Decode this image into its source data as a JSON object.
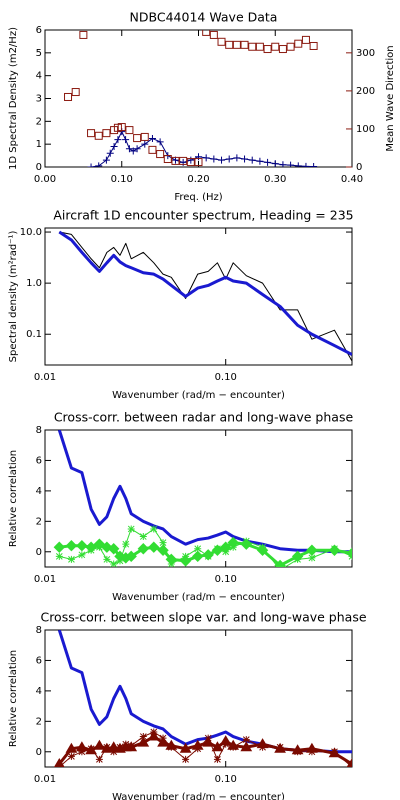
{
  "chart_data": [
    {
      "type": "line",
      "title": "NDBC44014 Wave Data",
      "xlabel": "Freq. (Hz)",
      "ylabel": "1D Spectral Density (m2/Hz)",
      "y2label": "Mean Wave Direction",
      "y2color": "#8b1a10",
      "xlim": [
        0,
        0.4
      ],
      "xticks": [
        {
          "value": 0,
          "label": "0.00"
        },
        {
          "value": 0.1,
          "label": "0.10"
        },
        {
          "value": 0.2,
          "label": "0.20"
        },
        {
          "value": 0.3,
          "label": "0.30"
        },
        {
          "value": 0.4,
          "label": "0.40"
        }
      ],
      "ylim": [
        0,
        6
      ],
      "yticks": [
        0,
        1,
        2,
        3,
        4,
        5,
        6
      ],
      "y2lim": [
        0,
        360
      ],
      "y2ticks": [
        0,
        100,
        200,
        300
      ],
      "series": [
        {
          "color": "#000080",
          "marker": "plus",
          "line": true,
          "linewidth": 1,
          "x": [
            0.06,
            0.07,
            0.08,
            0.085,
            0.09,
            0.095,
            0.1,
            0.105,
            0.11,
            0.115,
            0.12,
            0.13,
            0.14,
            0.15,
            0.16,
            0.17,
            0.18,
            0.19,
            0.2,
            0.21,
            0.22,
            0.23,
            0.24,
            0.25,
            0.26,
            0.27,
            0.28,
            0.29,
            0.3,
            0.31,
            0.32,
            0.33,
            0.34,
            0.35
          ],
          "values": [
            0,
            0.05,
            0.3,
            0.6,
            0.9,
            1.2,
            1.55,
            1.2,
            0.8,
            0.7,
            0.8,
            1.0,
            1.25,
            1.1,
            0.5,
            0.3,
            0.2,
            0.3,
            0.45,
            0.4,
            0.35,
            0.3,
            0.35,
            0.4,
            0.35,
            0.3,
            0.25,
            0.2,
            0.15,
            0.1,
            0.08,
            0.05,
            0.03,
            0.02
          ]
        },
        {
          "color": "#8b1a10",
          "marker": "square",
          "line": false,
          "axis": "y2",
          "x": [
            0.03,
            0.04,
            0.05,
            0.06,
            0.07,
            0.08,
            0.09,
            0.095,
            0.1,
            0.11,
            0.12,
            0.13,
            0.14,
            0.15,
            0.16,
            0.17,
            0.18,
            0.19,
            0.2,
            0.21,
            0.22,
            0.23,
            0.24,
            0.25,
            0.26,
            0.27,
            0.28,
            0.29,
            0.3,
            0.31,
            0.32,
            0.33,
            0.34,
            0.35
          ],
          "values": [
            184,
            197,
            347,
            89,
            82,
            89,
            97,
            103,
            105,
            97,
            76,
            79,
            45,
            34,
            21,
            16,
            16,
            13,
            13,
            355,
            347,
            329,
            321,
            321,
            321,
            316,
            316,
            310,
            316,
            310,
            316,
            324,
            334,
            318
          ]
        }
      ]
    },
    {
      "type": "line",
      "title": "Aircraft 1D encounter spectrum, Heading = 235",
      "xlabel": "Wavenumber (rad/m − encounter)",
      "ylabel": "Spectral density (m²rad⁻¹)",
      "xlog": true,
      "ylog": true,
      "xlim": [
        0.01,
        0.5
      ],
      "xticks": [
        0.01,
        {
          "value": 0.1,
          "label": "0.10"
        }
      ],
      "ylim": [
        0.025,
        12
      ],
      "yticks": [
        {
          "value": 10,
          "label": "10.0"
        },
        {
          "value": 1,
          "label": "1.0"
        },
        0.1
      ],
      "series": [
        {
          "color": "#000000",
          "linewidth": 1,
          "line": true,
          "x": [
            0.012,
            0.014,
            0.016,
            0.018,
            0.02,
            0.022,
            0.024,
            0.026,
            0.028,
            0.03,
            0.035,
            0.04,
            0.045,
            0.05,
            0.06,
            0.07,
            0.08,
            0.09,
            0.1,
            0.11,
            0.13,
            0.16,
            0.2,
            0.25,
            0.3,
            0.4,
            0.5
          ],
          "values": [
            10,
            9,
            5,
            3,
            2,
            4,
            5,
            3.5,
            6,
            3,
            4,
            2.5,
            1.5,
            1.3,
            0.5,
            1.5,
            1.7,
            2.5,
            1.2,
            2.5,
            1.4,
            1.0,
            0.3,
            0.3,
            0.08,
            0.12,
            0.03
          ]
        },
        {
          "color": "#1a1ad0",
          "linewidth": 3,
          "line": true,
          "x": [
            0.012,
            0.014,
            0.016,
            0.018,
            0.02,
            0.022,
            0.024,
            0.026,
            0.028,
            0.03,
            0.035,
            0.04,
            0.045,
            0.05,
            0.06,
            0.07,
            0.08,
            0.09,
            0.1,
            0.11,
            0.13,
            0.16,
            0.2,
            0.25,
            0.3,
            0.4,
            0.5
          ],
          "values": [
            10,
            7,
            4,
            2.5,
            1.7,
            2.5,
            3.5,
            2.6,
            2.2,
            2.0,
            1.6,
            1.5,
            1.2,
            0.9,
            0.55,
            0.8,
            0.9,
            1.1,
            1.3,
            1.1,
            1.0,
            0.6,
            0.35,
            0.15,
            0.1,
            0.06,
            0.04
          ]
        }
      ]
    },
    {
      "type": "line",
      "title": "Cross-corr. between radar and long-wave phase",
      "xlabel": "Wavenumber (rad/m − encounter)",
      "ylabel": "Relative correlation",
      "xlog": true,
      "xlim": [
        0.01,
        0.5
      ],
      "xticks": [
        0.01,
        {
          "value": 0.1,
          "label": "0.10"
        }
      ],
      "ylim": [
        -1,
        8
      ],
      "yticks": [
        0,
        2,
        4,
        6,
        8
      ],
      "series": [
        {
          "color": "#1a1ad0",
          "linewidth": 3,
          "line": true,
          "x": [
            0.012,
            0.014,
            0.016,
            0.018,
            0.02,
            0.022,
            0.024,
            0.026,
            0.028,
            0.03,
            0.035,
            0.04,
            0.045,
            0.05,
            0.06,
            0.07,
            0.08,
            0.09,
            0.1,
            0.11,
            0.13,
            0.16,
            0.2,
            0.25,
            0.3,
            0.4,
            0.5
          ],
          "values": [
            8.0,
            5.5,
            5.2,
            2.8,
            1.8,
            2.3,
            3.5,
            4.3,
            3.5,
            2.5,
            2.0,
            1.7,
            1.5,
            1.0,
            0.5,
            0.8,
            0.9,
            1.1,
            1.3,
            1.0,
            0.7,
            0.5,
            0.2,
            0.1,
            0.1,
            0,
            0
          ]
        },
        {
          "color": "#33dd33",
          "linewidth": 1,
          "line": true,
          "marker": "star",
          "x": [
            0.012,
            0.014,
            0.016,
            0.018,
            0.02,
            0.022,
            0.024,
            0.026,
            0.028,
            0.03,
            0.035,
            0.04,
            0.045,
            0.05,
            0.06,
            0.07,
            0.08,
            0.09,
            0.1,
            0.11,
            0.13,
            0.16,
            0.2,
            0.25,
            0.3,
            0.4,
            0.5
          ],
          "values": [
            -0.3,
            -0.5,
            -0.2,
            0.1,
            0.3,
            -0.5,
            -0.8,
            -0.6,
            0.5,
            1.5,
            1.0,
            1.5,
            0.6,
            -0.8,
            -0.3,
            0.2,
            -0.3,
            0.2,
            0.0,
            0.3,
            0.7,
            0.3,
            -1.2,
            -0.5,
            -0.4,
            0.2,
            -0.3
          ]
        },
        {
          "color": "#33dd33",
          "linewidth": 3,
          "line": true,
          "marker": "diamond",
          "x": [
            0.012,
            0.014,
            0.016,
            0.018,
            0.02,
            0.022,
            0.024,
            0.026,
            0.028,
            0.03,
            0.035,
            0.04,
            0.045,
            0.05,
            0.06,
            0.07,
            0.08,
            0.09,
            0.1,
            0.11,
            0.13,
            0.16,
            0.2,
            0.25,
            0.3,
            0.4,
            0.5
          ],
          "values": [
            0.3,
            0.4,
            0.4,
            0.3,
            0.5,
            0.3,
            0.2,
            -0.3,
            -0.4,
            -0.3,
            0.2,
            0.3,
            0.1,
            -0.5,
            -0.6,
            -0.3,
            -0.2,
            0.1,
            0.3,
            0.6,
            0.5,
            0.1,
            -0.9,
            -0.3,
            0.1,
            0.1,
            -0.1
          ]
        }
      ]
    },
    {
      "type": "line",
      "title": "Cross-corr. between slope var. and long-wave phase",
      "xlabel": "Wavenumber (rad/m − encounter)",
      "ylabel": "Relative correlation",
      "xlog": true,
      "xlim": [
        0.01,
        0.5
      ],
      "xticks": [
        0.01,
        {
          "value": 0.1,
          "label": "0.10"
        }
      ],
      "ylim": [
        -1,
        8
      ],
      "yticks": [
        0,
        2,
        4,
        6,
        8
      ],
      "series": [
        {
          "color": "#1a1ad0",
          "linewidth": 3,
          "line": true,
          "x": [
            0.012,
            0.014,
            0.016,
            0.018,
            0.02,
            0.022,
            0.024,
            0.026,
            0.028,
            0.03,
            0.035,
            0.04,
            0.045,
            0.05,
            0.06,
            0.07,
            0.08,
            0.09,
            0.1,
            0.11,
            0.13,
            0.16,
            0.2,
            0.25,
            0.3,
            0.4,
            0.5
          ],
          "values": [
            8.0,
            5.5,
            5.2,
            2.8,
            1.8,
            2.3,
            3.5,
            4.3,
            3.5,
            2.5,
            2.0,
            1.7,
            1.5,
            1.0,
            0.5,
            0.8,
            0.9,
            1.1,
            1.3,
            1.0,
            0.7,
            0.5,
            0.2,
            0.1,
            0.1,
            0,
            0
          ]
        },
        {
          "color": "#7a0a00",
          "linewidth": 1,
          "line": true,
          "marker": "star",
          "x": [
            0.012,
            0.014,
            0.016,
            0.018,
            0.02,
            0.022,
            0.024,
            0.026,
            0.028,
            0.03,
            0.035,
            0.04,
            0.045,
            0.05,
            0.06,
            0.07,
            0.08,
            0.09,
            0.1,
            0.11,
            0.13,
            0.16,
            0.2,
            0.25,
            0.3,
            0.4,
            0.5
          ],
          "values": [
            -1.0,
            -0.3,
            0.0,
            0.2,
            -0.5,
            0.3,
            0.0,
            0.3,
            0.5,
            0.4,
            1.0,
            1.3,
            0.9,
            0.3,
            -0.5,
            0.2,
            0.9,
            -0.5,
            0.5,
            0.3,
            0.8,
            0.3,
            0.3,
            0.0,
            0.0,
            0.0,
            -1.0
          ]
        },
        {
          "color": "#7a0a00",
          "linewidth": 3,
          "line": true,
          "marker": "triangle",
          "x": [
            0.012,
            0.014,
            0.016,
            0.018,
            0.02,
            0.022,
            0.024,
            0.026,
            0.028,
            0.03,
            0.035,
            0.04,
            0.045,
            0.05,
            0.06,
            0.07,
            0.08,
            0.09,
            0.1,
            0.11,
            0.13,
            0.16,
            0.2,
            0.25,
            0.3,
            0.4,
            0.5
          ],
          "values": [
            -0.8,
            0.2,
            0.3,
            0.1,
            0.4,
            0.2,
            0.3,
            0.2,
            0.3,
            0.3,
            0.6,
            1.0,
            0.6,
            0.4,
            0.2,
            0.4,
            0.6,
            0.3,
            0.7,
            0.4,
            0.3,
            0.5,
            0.2,
            0.1,
            0.2,
            -0.1,
            -0.8
          ]
        }
      ]
    }
  ]
}
